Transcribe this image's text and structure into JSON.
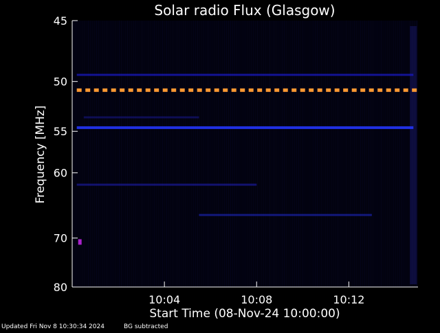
{
  "chart_data": {
    "type": "heatmap",
    "title": "Solar radio Flux (Glasgow)",
    "xlabel": "Start Time (08-Nov-24 10:00:00)",
    "ylabel": "Frequency [MHz]",
    "x_unit": "minutes after 10:00:00",
    "xlim": [
      0,
      15
    ],
    "ylim": [
      45,
      80
    ],
    "y_scale": "reciprocal",
    "x_ticks": [
      {
        "value": 4,
        "label": "10:04"
      },
      {
        "value": 8,
        "label": "10:08"
      },
      {
        "value": 12,
        "label": "10:12"
      }
    ],
    "y_ticks": [
      {
        "value": 45,
        "label": "45"
      },
      {
        "value": 50,
        "label": "50"
      },
      {
        "value": 55,
        "label": "55"
      },
      {
        "value": 60,
        "label": "60"
      },
      {
        "value": 70,
        "label": "70"
      },
      {
        "value": 80,
        "label": "80"
      }
    ],
    "features": [
      {
        "kind": "interference_band",
        "freq": 50.8,
        "x_range": [
          0.2,
          14.8
        ],
        "intensity": "high",
        "color": "#ff9933"
      },
      {
        "kind": "interference_band",
        "freq": 49.4,
        "x_range": [
          0.2,
          14.8
        ],
        "intensity": "low",
        "color": "#1a1acc"
      },
      {
        "kind": "interference_band",
        "freq": 54.6,
        "x_range": [
          0.2,
          14.8
        ],
        "intensity": "medium",
        "color": "#2233ee"
      },
      {
        "kind": "interference_band",
        "freq": 53.5,
        "x_range": [
          0.5,
          5.5
        ],
        "intensity": "low",
        "color": "#141470"
      },
      {
        "kind": "interference_band",
        "freq": 61.6,
        "x_range": [
          0.2,
          8.0
        ],
        "intensity": "low",
        "color": "#1a1a99"
      },
      {
        "kind": "interference_band",
        "freq": 66.1,
        "x_range": [
          5.5,
          13.0
        ],
        "intensity": "low",
        "color": "#1a22aa"
      },
      {
        "kind": "spot",
        "freq": 70.7,
        "x": 0.35,
        "intensity": "medium",
        "color": "#aa22cc"
      }
    ]
  },
  "colors": {
    "background": "#000000",
    "plot_background": "#02020f",
    "axis": "#ffffff",
    "text": "#ffffff"
  },
  "footer": {
    "updated": "Updated Fri Nov  8 10:30:34 2024",
    "note": "BG subtracted"
  }
}
